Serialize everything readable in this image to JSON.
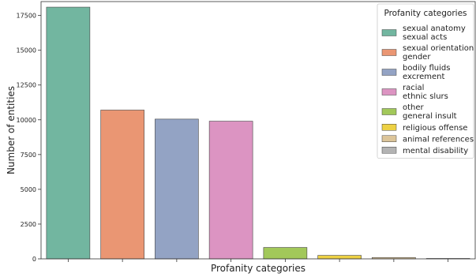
{
  "chart_data": {
    "type": "bar",
    "title": "",
    "xlabel": "Profanity categories",
    "ylabel": "Number of entities",
    "ylim": [
      0,
      18500
    ],
    "yticks": [
      0,
      2500,
      5000,
      7500,
      10000,
      12500,
      15000,
      17500
    ],
    "grid": false,
    "legend": {
      "title": "Profanity categories",
      "placement": "top-right"
    },
    "categories": [
      {
        "lines": [
          "sexual anatomy",
          "sexual acts"
        ],
        "value": 18100,
        "color": "#72b6a0"
      },
      {
        "lines": [
          "sexual orientation",
          "gender"
        ],
        "value": 10700,
        "color": "#ea9673"
      },
      {
        "lines": [
          "bodily fluids",
          "excrement"
        ],
        "value": 10050,
        "color": "#93a3c4"
      },
      {
        "lines": [
          "racial",
          "ethnic slurs"
        ],
        "value": 9900,
        "color": "#dc94c2"
      },
      {
        "lines": [
          "other",
          "general insult"
        ],
        "value": 820,
        "color": "#a2c85a"
      },
      {
        "lines": [
          "religious offense"
        ],
        "value": 250,
        "color": "#edd144"
      },
      {
        "lines": [
          "animal references"
        ],
        "value": 100,
        "color": "#dcc59a"
      },
      {
        "lines": [
          "mental disability"
        ],
        "value": 30,
        "color": "#b3b3b3"
      }
    ]
  }
}
